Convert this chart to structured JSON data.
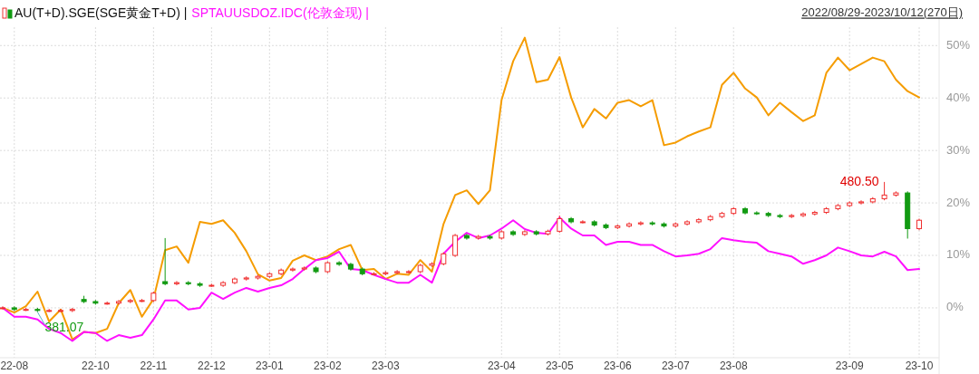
{
  "chart_data": {
    "type": "line",
    "subtitle": "2022/08/29-2023/10/12(270日)",
    "grid": true,
    "categories": [
      null,
      "22-08",
      null,
      null,
      null,
      null,
      null,
      null,
      "22-10",
      null,
      null,
      null,
      null,
      "22-11",
      null,
      null,
      null,
      null,
      "22-12",
      null,
      null,
      null,
      null,
      "23-01",
      null,
      null,
      null,
      null,
      "23-02",
      null,
      null,
      null,
      null,
      "23-03",
      null,
      null,
      null,
      null,
      null,
      null,
      null,
      null,
      null,
      "23-04",
      null,
      null,
      null,
      null,
      "23-05",
      null,
      null,
      null,
      null,
      "23-06",
      null,
      null,
      null,
      null,
      "23-07",
      null,
      null,
      null,
      null,
      "23-08",
      null,
      null,
      null,
      null,
      null,
      null,
      null,
      null,
      null,
      "23-09",
      null,
      null,
      null,
      null,
      null,
      "23-10"
    ],
    "ylim": [
      -9.5,
      53.5
    ],
    "yticks": [
      {
        "value": 0,
        "label": "0%"
      },
      {
        "value": 10,
        "label": "10%"
      },
      {
        "value": 20,
        "label": "20%"
      },
      {
        "value": 30,
        "label": "30%"
      },
      {
        "value": 40,
        "label": "40%"
      },
      {
        "value": 50,
        "label": "50%"
      }
    ],
    "series": [
      {
        "type": "candlestick",
        "name": "AU(T+D).SGE(SGE黄金T+D) |",
        "ohlc": [
          [
            0,
            0.3,
            -0.3,
            0
          ],
          [
            0,
            0.3,
            -0.6,
            -0.3
          ],
          [
            -0.3,
            0,
            -0.6,
            -0.3
          ],
          [
            -0.3,
            0,
            -0.8,
            -0.5
          ],
          [
            -0.5,
            -0.2,
            -0.8,
            -0.5
          ],
          [
            -0.5,
            -0.2,
            -0.8,
            -0.5
          ],
          [
            -0.5,
            0,
            -0.8,
            -0.3
          ],
          [
            1.6,
            2.3,
            0.9,
            1.2
          ],
          [
            1.2,
            1.5,
            0.6,
            0.9
          ],
          [
            0.9,
            1.2,
            0.6,
            0.9
          ],
          [
            0.9,
            1.5,
            0.6,
            1.2
          ],
          [
            1.2,
            1.7,
            0.9,
            1.4
          ],
          [
            1.4,
            1.7,
            1.1,
            1.4
          ],
          [
            1.4,
            3.1,
            1.1,
            2.8
          ],
          [
            5.0,
            13.3,
            4.3,
            4.6
          ],
          [
            4.6,
            5.1,
            4.3,
            4.8
          ],
          [
            4.8,
            5.1,
            4.3,
            4.6
          ],
          [
            4.6,
            4.9,
            4.0,
            4.3
          ],
          [
            4.3,
            4.6,
            4.0,
            4.3
          ],
          [
            4.3,
            5.1,
            4.0,
            4.8
          ],
          [
            4.8,
            5.8,
            4.5,
            5.5
          ],
          [
            5.5,
            6.0,
            5.2,
            5.7
          ],
          [
            5.7,
            6.3,
            5.4,
            6.0
          ],
          [
            6.0,
            6.8,
            5.7,
            6.5
          ],
          [
            6.5,
            7.5,
            6.2,
            7.2
          ],
          [
            7.2,
            7.7,
            6.9,
            7.4
          ],
          [
            7.4,
            7.9,
            7.1,
            7.6
          ],
          [
            7.6,
            7.9,
            6.6,
            6.9
          ],
          [
            6.9,
            8.9,
            6.6,
            8.6
          ],
          [
            8.6,
            8.9,
            8.0,
            8.3
          ],
          [
            8.3,
            8.6,
            7.1,
            7.4
          ],
          [
            7.4,
            7.7,
            6.2,
            6.5
          ],
          [
            6.5,
            6.8,
            6.2,
            6.5
          ],
          [
            6.5,
            7.0,
            6.2,
            6.7
          ],
          [
            6.7,
            7.2,
            6.4,
            6.9
          ],
          [
            6.9,
            7.2,
            6.6,
            6.9
          ],
          [
            6.9,
            8.4,
            6.6,
            8.1
          ],
          [
            8.1,
            8.7,
            7.8,
            8.4
          ],
          [
            8.4,
            10.6,
            8.1,
            10.3
          ],
          [
            10.0,
            14.1,
            9.7,
            13.8
          ],
          [
            13.8,
            14.1,
            13.0,
            13.3
          ],
          [
            13.3,
            13.9,
            13.0,
            13.6
          ],
          [
            13.6,
            13.9,
            13.0,
            13.3
          ],
          [
            13.3,
            14.8,
            13.0,
            14.5
          ],
          [
            14.5,
            14.8,
            13.7,
            14.0
          ],
          [
            14.0,
            14.8,
            13.7,
            14.5
          ],
          [
            14.5,
            14.8,
            13.8,
            14.1
          ],
          [
            14.1,
            14.9,
            13.8,
            14.6
          ],
          [
            14.6,
            17.6,
            14.3,
            17.0
          ],
          [
            17.0,
            17.3,
            16.1,
            16.4
          ],
          [
            16.4,
            16.7,
            16.1,
            16.4
          ],
          [
            16.4,
            16.7,
            15.5,
            15.8
          ],
          [
            15.8,
            16.1,
            15.0,
            15.3
          ],
          [
            15.3,
            15.9,
            15.0,
            15.6
          ],
          [
            15.6,
            16.3,
            15.3,
            16.0
          ],
          [
            16.0,
            16.5,
            15.7,
            16.2
          ],
          [
            16.2,
            16.5,
            15.7,
            16.0
          ],
          [
            16.0,
            16.3,
            15.3,
            15.6
          ],
          [
            15.6,
            16.3,
            15.3,
            16.0
          ],
          [
            16.0,
            16.7,
            15.7,
            16.4
          ],
          [
            16.4,
            17.1,
            16.1,
            16.8
          ],
          [
            16.8,
            17.7,
            16.5,
            17.4
          ],
          [
            17.4,
            18.3,
            17.1,
            18.0
          ],
          [
            18.0,
            19.2,
            17.7,
            18.9
          ],
          [
            18.9,
            19.2,
            17.8,
            18.1
          ],
          [
            18.1,
            18.4,
            17.7,
            18.0
          ],
          [
            18.0,
            18.3,
            17.3,
            17.6
          ],
          [
            17.6,
            17.9,
            17.1,
            17.4
          ],
          [
            17.4,
            17.9,
            17.1,
            17.6
          ],
          [
            17.6,
            18.2,
            17.3,
            17.9
          ],
          [
            17.9,
            18.5,
            17.6,
            18.2
          ],
          [
            18.2,
            19.2,
            17.9,
            18.9
          ],
          [
            18.9,
            19.8,
            18.6,
            19.5
          ],
          [
            19.5,
            20.3,
            19.2,
            20.0
          ],
          [
            20.0,
            20.5,
            19.7,
            20.2
          ],
          [
            20.2,
            21.1,
            19.9,
            20.8
          ],
          [
            20.8,
            24.0,
            20.5,
            21.5
          ],
          [
            21.5,
            22.2,
            21.2,
            21.9
          ],
          [
            21.9,
            22.2,
            13.2,
            15.1
          ],
          [
            15.1,
            17.0,
            14.8,
            16.7
          ]
        ],
        "colors": [
          "#f03030",
          "#129a12",
          "#f03030",
          "#129a12",
          "#f03030",
          "#f03030",
          "#f03030",
          "#129a12",
          "#129a12",
          "#f03030",
          "#f03030",
          "#f03030",
          "#f03030",
          "#f03030",
          "#129a12",
          "#f03030",
          "#129a12",
          "#129a12",
          "#f03030",
          "#f03030",
          "#f03030",
          "#f03030",
          "#f03030",
          "#f03030",
          "#f03030",
          "#f03030",
          "#f03030",
          "#129a12",
          "#f03030",
          "#129a12",
          "#129a12",
          "#129a12",
          "#f03030",
          "#f03030",
          "#f03030",
          "#f03030",
          "#f03030",
          "#f03030",
          "#f03030",
          "#f03030",
          "#129a12",
          "#f03030",
          "#129a12",
          "#f03030",
          "#129a12",
          "#f03030",
          "#129a12",
          "#f03030",
          "#f03030",
          "#129a12",
          "#f03030",
          "#129a12",
          "#129a12",
          "#f03030",
          "#f03030",
          "#f03030",
          "#129a12",
          "#129a12",
          "#f03030",
          "#f03030",
          "#f03030",
          "#f03030",
          "#f03030",
          "#f03030",
          "#129a12",
          "#129a12",
          "#129a12",
          "#129a12",
          "#f03030",
          "#f03030",
          "#f03030",
          "#f03030",
          "#f03030",
          "#f03030",
          "#f03030",
          "#f03030",
          "#f03030",
          "#f03030",
          "#129a12",
          "#f03030"
        ]
      },
      {
        "color": "#f59c00",
        "values": [
          0,
          -0.9,
          0.3,
          3.1,
          -2.6,
          -0.3,
          -6.0,
          -4.6,
          -4.8,
          -4.0,
          0.9,
          3.4,
          -1.7,
          1.7,
          11.0,
          11.7,
          8.6,
          16.4,
          16.0,
          16.7,
          14.3,
          10.8,
          6.4,
          5.2,
          5.7,
          9.0,
          10.0,
          9.1,
          9.8,
          11.2,
          12.0,
          7.2,
          7.4,
          5.5,
          6.5,
          6.3,
          9.1,
          6.9,
          16.0,
          21.5,
          22.4,
          19.8,
          22.4,
          39.6,
          47.0,
          51.5,
          43.0,
          43.5,
          47.8,
          40.1,
          34.4,
          37.9,
          36.1,
          39.1,
          39.6,
          38.4,
          39.6,
          31.0,
          31.5,
          32.7,
          33.6,
          34.4,
          42.5,
          44.8,
          41.8,
          40.1,
          36.7,
          39.1,
          37.3,
          35.6,
          36.7,
          44.8,
          47.7,
          45.3,
          46.5,
          47.7,
          47.0,
          43.5,
          41.3,
          40.1
        ]
      },
      {
        "name": "SPTAUUSDOZ.IDC(伦敦金现) |",
        "color": "#ff10ff",
        "values": [
          0,
          -1.7,
          -1.7,
          -2.2,
          -4.0,
          -4.8,
          -6.3,
          -4.6,
          -4.8,
          -6.3,
          -5.2,
          -5.7,
          -5.2,
          -2.2,
          1.4,
          1.4,
          -0.3,
          0,
          2.9,
          1.7,
          2.9,
          3.8,
          3.1,
          3.8,
          4.3,
          5.5,
          7.4,
          9.1,
          9.5,
          10.7,
          7.4,
          7.2,
          6.3,
          5.5,
          4.8,
          4.8,
          6.3,
          4.8,
          10.3,
          12.6,
          14.3,
          13.3,
          13.8,
          15.1,
          16.7,
          15.0,
          14.3,
          14.1,
          17.2,
          15.1,
          13.8,
          13.8,
          12.0,
          12.6,
          12.6,
          12.0,
          12.0,
          10.8,
          9.8,
          10.0,
          10.3,
          11.2,
          13.3,
          12.9,
          12.6,
          12.4,
          10.8,
          10.3,
          9.8,
          8.4,
          9.1,
          10.0,
          11.5,
          10.8,
          10.0,
          9.8,
          10.7,
          9.8,
          7.2,
          7.4
        ]
      }
    ],
    "annotations": [
      "381.07",
      "480.50"
    ]
  }
}
